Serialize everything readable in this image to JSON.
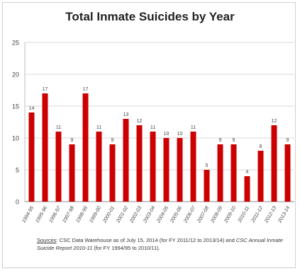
{
  "chart_data": {
    "type": "bar",
    "title": "Total Inmate Suicides by Year",
    "xlabel": "",
    "ylabel": "",
    "ylim": [
      0,
      25
    ],
    "yticks": [
      0,
      5,
      10,
      15,
      20,
      25
    ],
    "grid": "horizontal",
    "color": "#cc0000",
    "categories": [
      "1994-95",
      "1995-96",
      "1996-97",
      "1997-98",
      "1998-99",
      "1999-00",
      "2000-01",
      "2001-02",
      "2002-03",
      "2003-04",
      "2004-05",
      "2005-06",
      "2006-07",
      "2007-08",
      "2008-09",
      "2009-10",
      "2010-11",
      "2011-12",
      "2012-13",
      "2013-14"
    ],
    "values": [
      14,
      17,
      11,
      9,
      17,
      11,
      9,
      13,
      12,
      11,
      10,
      10,
      11,
      5,
      9,
      9,
      4,
      8,
      12,
      9
    ]
  },
  "source": {
    "label": "Sources",
    "colon": ":",
    "text1": " CSC Data Warehouse as of July 15, 2014 (for FY 2011/12 to 2013/14) and ",
    "italic": "CSC Annual Inmate Suicide Report 2010-11",
    "text2": " (for FY 1994/95 to 2010/11)."
  }
}
